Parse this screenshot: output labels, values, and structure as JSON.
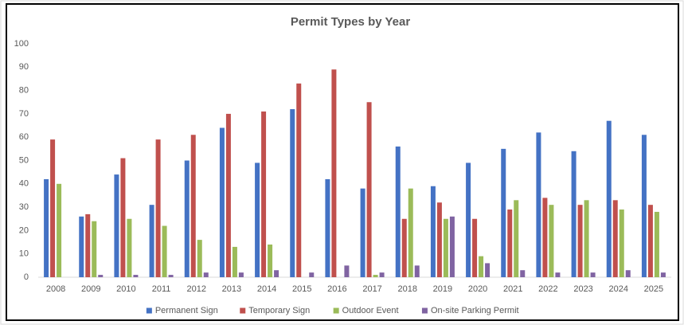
{
  "chart_data": {
    "type": "bar",
    "title": "Permit Types by Year",
    "categories": [
      "2008",
      "2009",
      "2010",
      "2011",
      "2012",
      "2013",
      "2014",
      "2015",
      "2016",
      "2017",
      "2018",
      "2019",
      "2020",
      "2021",
      "2022",
      "2023",
      "2024",
      "2025"
    ],
    "series": [
      {
        "name": "Permanent Sign",
        "color": "#4472c4",
        "values": [
          42,
          26,
          44,
          31,
          50,
          64,
          49,
          72,
          42,
          38,
          56,
          39,
          49,
          55,
          62,
          54,
          67,
          61
        ]
      },
      {
        "name": "Temporary Sign",
        "color": "#c0504d",
        "values": [
          59,
          27,
          51,
          59,
          61,
          70,
          71,
          83,
          89,
          75,
          25,
          32,
          25,
          29,
          34,
          31,
          33,
          31
        ]
      },
      {
        "name": "Outdoor Event",
        "color": "#9bbb59",
        "values": [
          40,
          24,
          25,
          22,
          16,
          13,
          14,
          0,
          0,
          1,
          38,
          25,
          9,
          33,
          31,
          33,
          29,
          28
        ]
      },
      {
        "name": "On-site Parking Permit",
        "color": "#8064a2",
        "values": [
          0,
          1,
          1,
          1,
          2,
          2,
          3,
          2,
          5,
          2,
          5,
          26,
          6,
          3,
          2,
          2,
          3,
          2
        ]
      }
    ],
    "ylim": [
      0,
      100
    ],
    "yticks": [
      0,
      10,
      20,
      30,
      40,
      50,
      60,
      70,
      80,
      90,
      100
    ],
    "grid": false,
    "legend": "bottom"
  }
}
